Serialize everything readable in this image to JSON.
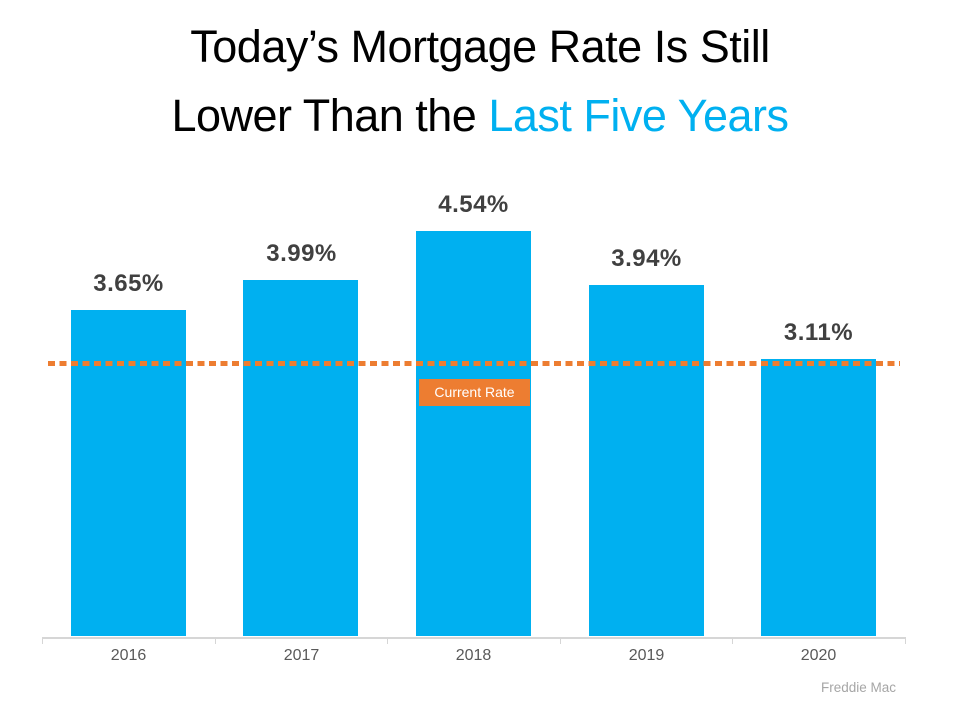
{
  "title": {
    "line1": "Today’s Mortgage Rate Is Still",
    "line2_prefix": "Lower Than the ",
    "line2_highlight": "Last Five Years"
  },
  "current_rate_label": "Current Rate",
  "source": "Freddie Mac",
  "colors": {
    "bar": "#00B0F0",
    "title_highlight": "#00B0F0",
    "reference_line": "#ED7D31",
    "badge_background": "#ED7D31",
    "badge_text": "#FFFFFF",
    "data_label": "#404040",
    "axis_label": "#595959",
    "axis_line": "#D6D6D6",
    "source_text": "#A6A6A6",
    "title_text": "#000000"
  },
  "chart_data": {
    "type": "bar",
    "title": "Today’s Mortgage Rate Is Still Lower Than the Last Five Years",
    "categories": [
      "2016",
      "2017",
      "2018",
      "2019",
      "2020"
    ],
    "values": [
      3.65,
      3.99,
      4.54,
      3.94,
      3.11
    ],
    "data_labels": [
      "3.65%",
      "3.99%",
      "4.54%",
      "3.94%",
      "3.11%"
    ],
    "xlabel": "",
    "ylabel": "",
    "ylim": [
      0,
      4.8
    ],
    "y_axis_visible": false,
    "grid": false,
    "legend_position": "none",
    "reference_line": {
      "label": "Current Rate",
      "value_estimate": 3.06,
      "style": "dotted",
      "color": "#ED7D31"
    },
    "source": "Freddie Mac"
  }
}
